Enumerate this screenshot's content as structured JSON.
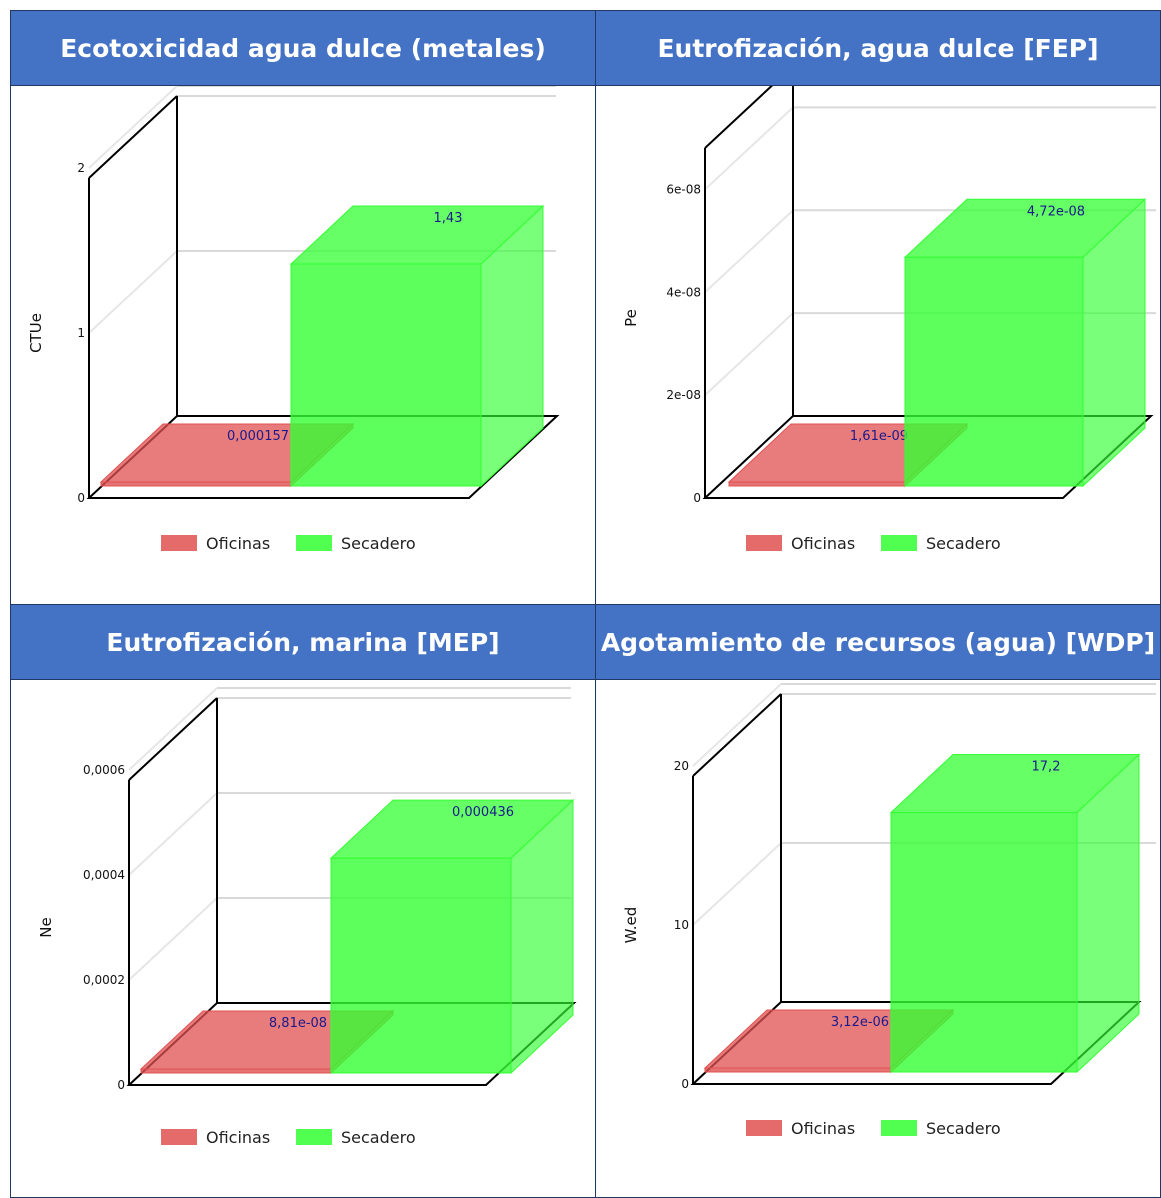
{
  "colors": {
    "header_bg": "#4472c4",
    "header_text": "#ffffff",
    "oficinas": "#e05050",
    "secadero": "#33ff33"
  },
  "chart_data": [
    {
      "type": "bar",
      "title": "Ecotoxicidad agua dulce (metales)",
      "ylabel": "CTUe",
      "categories": [
        "Oficinas",
        "Secadero"
      ],
      "values": [
        0.000157,
        1.43
      ],
      "value_labels": [
        "0,000157",
        "1,43"
      ],
      "ylim": [
        0,
        2
      ],
      "yticks": [
        {
          "v": 0,
          "label": "0"
        },
        {
          "v": 1,
          "label": "1"
        },
        {
          "v": 2,
          "label": "2"
        }
      ],
      "legend": [
        "Oficinas",
        "Secadero"
      ],
      "legend_position": "bottom"
    },
    {
      "type": "bar",
      "title": "Eutrofización, agua dulce [FEP]",
      "ylabel": "Pe",
      "categories": [
        "Oficinas",
        "Secadero"
      ],
      "values": [
        1.61e-09,
        4.72e-08
      ],
      "value_labels": [
        "1,61e-09",
        "4,72e-08"
      ],
      "ylim": [
        0,
        7e-08
      ],
      "yticks": [
        {
          "v": 0,
          "label": "0"
        },
        {
          "v": 2e-08,
          "label": "2e-08"
        },
        {
          "v": 4e-08,
          "label": "4e-08"
        },
        {
          "v": 6e-08,
          "label": "6e-08"
        }
      ],
      "legend": [
        "Oficinas",
        "Secadero"
      ],
      "legend_position": "bottom"
    },
    {
      "type": "bar",
      "title": "Eutrofización, marina [MEP]",
      "ylabel": "Ne",
      "categories": [
        "Oficinas",
        "Secadero"
      ],
      "values": [
        8.81e-08,
        0.000436
      ],
      "value_labels": [
        "8,81e-08",
        "0,000436"
      ],
      "ylim": [
        0,
        0.0006
      ],
      "yticks": [
        {
          "v": 0,
          "label": "0"
        },
        {
          "v": 0.0002,
          "label": "0,0002"
        },
        {
          "v": 0.0004,
          "label": "0,0004"
        },
        {
          "v": 0.0006,
          "label": "0,0006"
        }
      ],
      "legend": [
        "Oficinas",
        "Secadero"
      ],
      "legend_position": "bottom"
    },
    {
      "type": "bar",
      "title": "Agotamiento de recursos (agua) [WDP]",
      "ylabel": "W.ed",
      "categories": [
        "Oficinas",
        "Secadero"
      ],
      "values": [
        3.12e-06,
        17.2
      ],
      "value_labels": [
        "3,12e-06",
        "17,2"
      ],
      "ylim": [
        0,
        20
      ],
      "yticks": [
        {
          "v": 0,
          "label": "0"
        },
        {
          "v": 10,
          "label": "10"
        },
        {
          "v": 20,
          "label": "20"
        }
      ],
      "legend": [
        "Oficinas",
        "Secadero"
      ],
      "legend_position": "bottom"
    }
  ]
}
